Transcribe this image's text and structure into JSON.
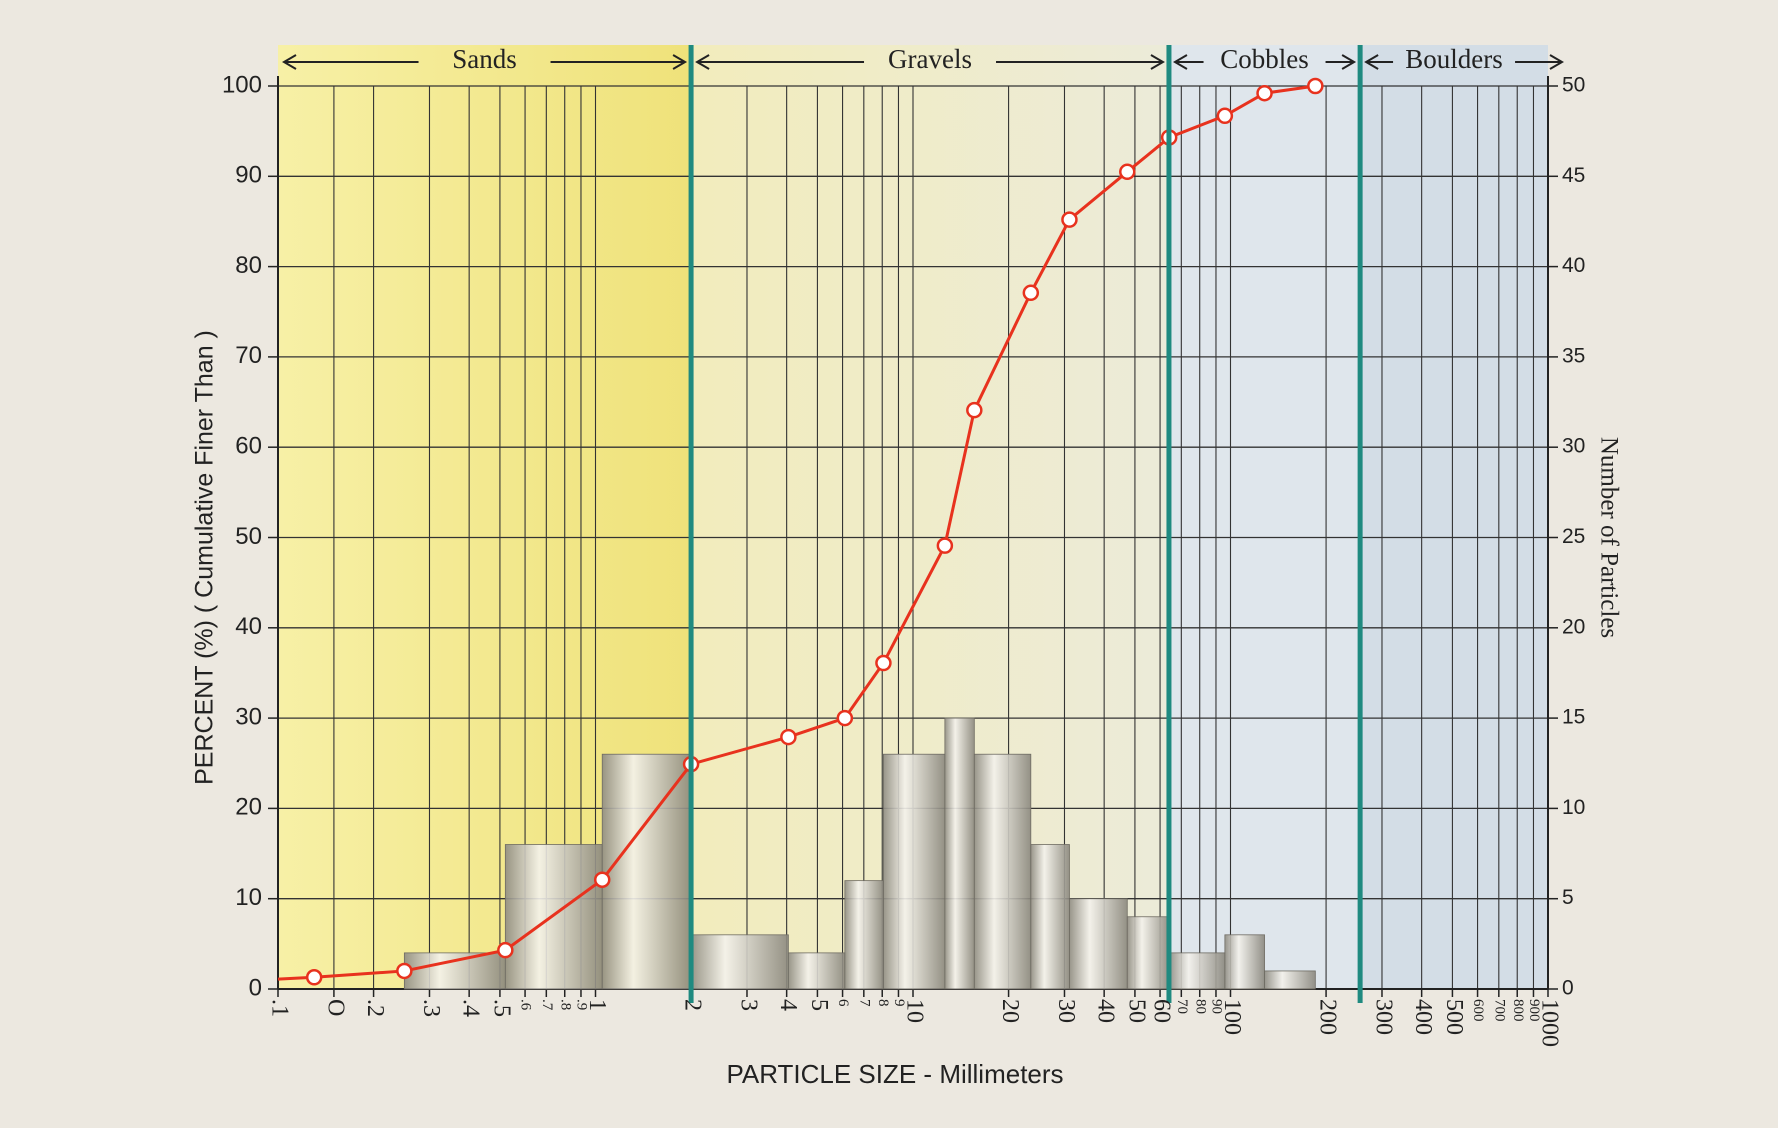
{
  "chart_data": {
    "type": "line",
    "xlabel": "PARTICLE SIZE  - Millimeters",
    "ylabel": "PERCENT (%) ( Cumulative Finer Than )",
    "y2label": "Number of Particles",
    "xlog": true,
    "xlim": [
      0.1,
      1000
    ],
    "ylim": [
      0,
      100
    ],
    "y2lim": [
      0,
      50
    ],
    "grid": true,
    "xticks": [
      {
        "value": 0.1,
        "label": ".1"
      },
      {
        "value": 0.15,
        "label": "O"
      },
      {
        "value": 0.2,
        "label": ".2"
      },
      {
        "value": 0.3,
        "label": ".3"
      },
      {
        "value": 0.4,
        "label": ".4"
      },
      {
        "value": 0.5,
        "label": ".5"
      },
      {
        "value": 0.6,
        "label": ".6"
      },
      {
        "value": 0.7,
        "label": ".7"
      },
      {
        "value": 0.8,
        "label": ".8"
      },
      {
        "value": 0.9,
        "label": ".9"
      },
      1,
      2,
      3,
      4,
      5,
      6,
      7,
      8,
      9,
      10,
      20,
      30,
      40,
      50,
      60,
      70,
      80,
      90,
      100,
      200,
      300,
      400,
      500,
      600,
      700,
      800,
      900,
      1000
    ],
    "yticks": [
      0,
      10,
      20,
      30,
      40,
      50,
      60,
      70,
      80,
      90,
      100
    ],
    "y2ticks": [
      0,
      5,
      10,
      15,
      20,
      25,
      30,
      35,
      40,
      45,
      50
    ],
    "zones": [
      "Sands",
      "Gravels",
      "Cobbles",
      "Boulders"
    ],
    "zone_boundaries": [
      2,
      64,
      256
    ],
    "boundary_color": "#1f8a80",
    "line": {
      "color": "#e8321e",
      "x": [
        0.1,
        0.13,
        0.25,
        0.52,
        1.05,
        2,
        4.05,
        6.1,
        8.07,
        12.6,
        15.6,
        23.5,
        31.1,
        47.3,
        64.1,
        96,
        128,
        185
      ],
      "values": [
        1.1,
        1.3,
        2,
        4.3,
        12.1,
        24.9,
        27.9,
        30,
        36.1,
        49.1,
        64.1,
        77.1,
        85.2,
        90.5,
        94.3,
        96.7,
        99.2,
        100
      ]
    },
    "bars": {
      "type": "histogram",
      "axis": "y2",
      "bins": [
        0.25,
        0.52,
        1.05,
        2,
        4.05,
        6.1,
        8.07,
        12.6,
        15.6,
        23.5,
        31.1,
        47.3,
        64.1,
        96,
        128,
        185
      ],
      "values": [
        2,
        8,
        13,
        3,
        2,
        6,
        13,
        15,
        13,
        8,
        5,
        4,
        2,
        3,
        1
      ]
    }
  }
}
